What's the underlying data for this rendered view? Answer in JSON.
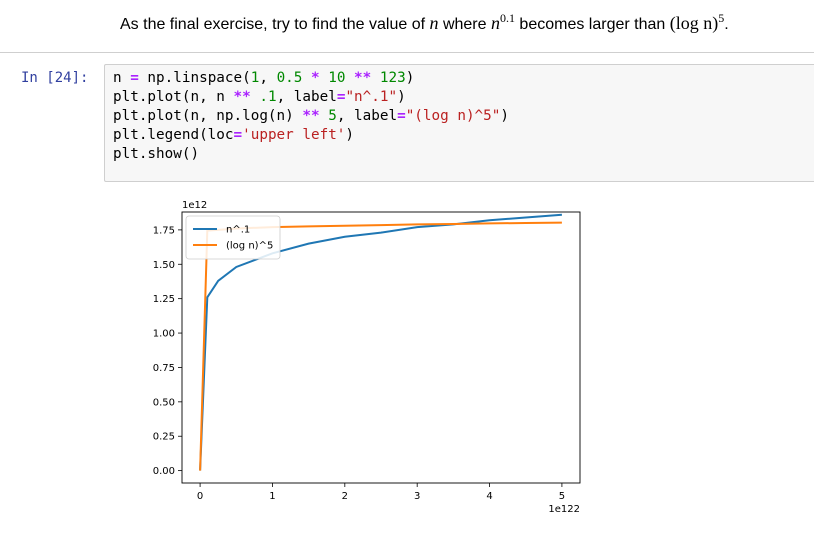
{
  "markdown": {
    "sentence_start": "As the final exercise, try to find the value of ",
    "var_n": "n",
    "word_where": " where ",
    "var_n2": "n",
    "exponent": "0.1",
    "becomes_larger": " becomes larger than ",
    "log_expr": "(log n)",
    "log_exponent": "5",
    "period": "."
  },
  "cell": {
    "prompt": "In [24]:",
    "code_lines": [
      "n = np.linspace(1, 0.5 * 10 ** 123)",
      "plt.plot(n, n ** .1, label=\"n^.1\")",
      "plt.plot(n, np.log(n) ** 5, label=\"(log n)^5\")",
      "plt.legend(loc='upper left')",
      "plt.show()"
    ]
  },
  "chart_data": {
    "type": "line",
    "title": "",
    "xlabel": "",
    "ylabel": "",
    "x_offset_label": "1e122",
    "y_offset_label": "1e12",
    "xlim": [
      -0.25,
      5.25
    ],
    "ylim": [
      -0.09,
      1.88
    ],
    "xticks": [
      0,
      1,
      2,
      3,
      4,
      5
    ],
    "xtick_labels": [
      "0",
      "1",
      "2",
      "3",
      "4",
      "5"
    ],
    "yticks": [
      0,
      0.25,
      0.5,
      0.75,
      1.0,
      1.25,
      1.5,
      1.75
    ],
    "ytick_labels": [
      "0.00",
      "0.25",
      "0.50",
      "0.75",
      "1.00",
      "1.25",
      "1.50",
      "1.75"
    ],
    "grid": false,
    "legend_position": "upper-left",
    "series": [
      {
        "name": "n^.1",
        "color": "#1f77b4",
        "x": [
          0,
          0.1,
          0.25,
          0.5,
          1,
          1.5,
          2,
          2.5,
          3,
          3.5,
          4,
          4.5,
          5
        ],
        "y": [
          0,
          1.26,
          1.38,
          1.48,
          1.58,
          1.65,
          1.7,
          1.73,
          1.77,
          1.79,
          1.82,
          1.84,
          1.86
        ]
      },
      {
        "name": "(log n)^5",
        "color": "#ff7f0e",
        "x": [
          0,
          0.1,
          0.25,
          0.5,
          1,
          1.5,
          2,
          2.5,
          3,
          3.5,
          4,
          4.5,
          5
        ],
        "y": [
          0,
          1.745,
          1.75,
          1.76,
          1.77,
          1.775,
          1.78,
          1.785,
          1.79,
          1.793,
          1.797,
          1.8,
          1.803
        ]
      }
    ]
  }
}
